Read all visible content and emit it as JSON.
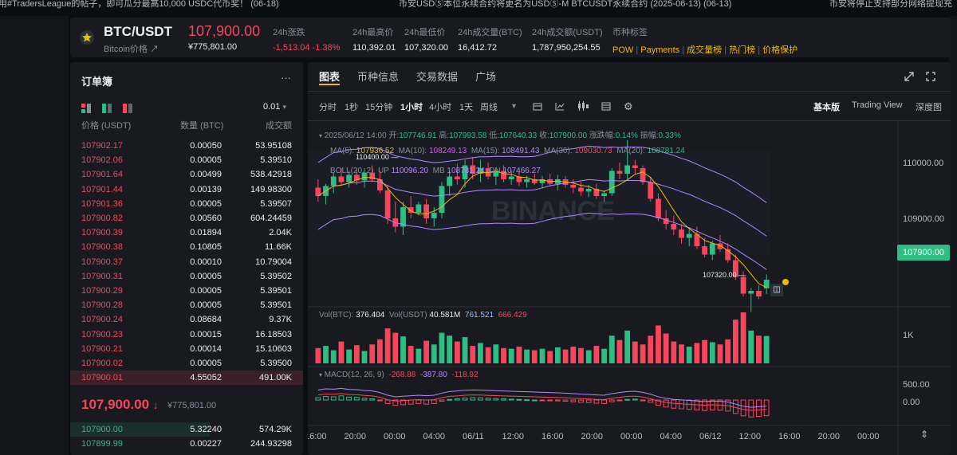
{
  "ticker": [
    "用#TradersLeague的帖子，即可瓜分最高10,000 USDC代币奖！ (06-18)",
    "币安USDⓈ本位永续合约将更名为USDⓈ-M BTCUSDT永续合约 (2025-06-13) (06-13)",
    "币安将停止支持部分网络提现充"
  ],
  "header": {
    "symbol": "BTC/USDT",
    "subtitle": "Bitcoin价格 ↗",
    "price": "107,900.00",
    "cny": "¥775,801.00",
    "stats": [
      {
        "label": "24h涨跌",
        "value": "-1,513.04 -1.38%",
        "color": "#f6465d"
      },
      {
        "label": "24h最高价",
        "value": "110,392.01"
      },
      {
        "label": "24h最低价",
        "value": "107,320.00"
      },
      {
        "label": "24h成交量(BTC)",
        "value": "16,412.72"
      },
      {
        "label": "24h成交额(USDT)",
        "value": "1,787,950,254.55"
      }
    ],
    "tags_label": "币种标签",
    "tags": [
      "POW",
      "Payments",
      "成交量榜",
      "热门榜",
      "价格保护"
    ]
  },
  "orderbook": {
    "title": "订单簿",
    "more": "···",
    "precision": "0.01",
    "col_price": "价格 (USDT)",
    "col_qty": "数量 (BTC)",
    "col_total": "成交额",
    "asks": [
      [
        "107902.17",
        "0.00050",
        "53.95108"
      ],
      [
        "107902.06",
        "0.00005",
        "5.39510"
      ],
      [
        "107901.64",
        "0.00499",
        "538.42918"
      ],
      [
        "107901.44",
        "0.00139",
        "149.98300"
      ],
      [
        "107901.36",
        "0.00005",
        "5.39507"
      ],
      [
        "107900.82",
        "0.00560",
        "604.24459"
      ],
      [
        "107900.39",
        "0.01894",
        "2.04K"
      ],
      [
        "107900.38",
        "0.10805",
        "11.66K"
      ],
      [
        "107900.37",
        "0.00010",
        "10.79004"
      ],
      [
        "107900.31",
        "0.00005",
        "5.39502"
      ],
      [
        "107900.29",
        "0.00005",
        "5.39501"
      ],
      [
        "107900.28",
        "0.00005",
        "5.39501"
      ],
      [
        "107900.24",
        "0.08684",
        "9.37K"
      ],
      [
        "107900.23",
        "0.00015",
        "16.18503"
      ],
      [
        "107900.21",
        "0.00014",
        "15.10603"
      ],
      [
        "107900.02",
        "0.00005",
        "5.39500"
      ],
      [
        "107900.01",
        "4.55052",
        "491.00K"
      ]
    ],
    "mid_price": "107,900.00",
    "mid_arrow": "↓",
    "mid_cny": "¥775,801.00",
    "bids": [
      [
        "107900.00",
        "5.32240",
        "574.29K"
      ],
      [
        "107899.99",
        "0.00227",
        "244.93298"
      ]
    ]
  },
  "chart_tabs": [
    "图表",
    "币种信息",
    "交易数据",
    "广场"
  ],
  "chart_toolbar": {
    "intervals": [
      "分时",
      "1秒",
      "15分钟",
      "1小时",
      "4小时",
      "1天",
      "周线"
    ],
    "active_interval": "1小时",
    "views": [
      "基本版",
      "Trading View",
      "深度图"
    ]
  },
  "chart_info": {
    "date": "2025/06/12 14:00",
    "open_label": "开:",
    "open": "107746.91",
    "high_label": "高:",
    "high": "107993.58",
    "low_label": "低:",
    "low": "107640.33",
    "close_label": "收:",
    "close": "107900.00",
    "change_label": "涨跌幅:",
    "change": "0.14%",
    "amp_label": "振幅:",
    "amp": "0.33%",
    "ma": [
      {
        "label": "MA(5):",
        "value": "107936.52",
        "color": "#f0b90b"
      },
      {
        "label": "MA(10):",
        "value": "108249.13",
        "color": "#e056fd"
      },
      {
        "label": "MA(15):",
        "value": "108491.43",
        "color": "#b388ff"
      },
      {
        "label": "MA(30):",
        "value": "109030.73",
        "color": "#f6465d"
      },
      {
        "label": "MA(20):",
        "value": "108781.24",
        "color": "#2ebd85"
      }
    ],
    "boll": {
      "label": "BOLL(20, 2)",
      "up_label": "UP",
      "up": "110096.20",
      "mb_label": "MB",
      "mb": "108781.24",
      "dn_label": "DN",
      "dn": "107466.27"
    },
    "high_mark": "110400.00",
    "low_mark": "107320.00",
    "price_tag": "107900.00",
    "vol": {
      "label": "Vol(BTC):",
      "btc": "376.404",
      "usdt_label": "Vol(USDT)",
      "usdt": "40.581M",
      "v1": "761.521",
      "v2": "666.429"
    },
    "macd": {
      "label": "MACD(12, 26, 9)",
      "v1": "-268.88",
      "v2": "-387.80",
      "v3": "-118.92"
    }
  },
  "chart_data": {
    "type": "candlestick",
    "ylim": [
      107000,
      110600
    ],
    "y_ticks": [
      "110000.00",
      "109000.00"
    ],
    "vol_ticks": [
      "1K"
    ],
    "macd_ticks": [
      "500.00",
      "0.00"
    ],
    "x_ticks": [
      "16:00",
      "20:00",
      "00:00",
      "04:00",
      "06/11",
      "12:00",
      "16:00",
      "20:00",
      "00:00",
      "04:00",
      "06/12",
      "12:00",
      "16:00",
      "20:00",
      "00:00"
    ],
    "candles": [
      [
        109550,
        109700,
        109300,
        109400
      ],
      [
        109400,
        109620,
        109250,
        109580
      ],
      [
        109580,
        109820,
        109450,
        109750
      ],
      [
        109750,
        109900,
        109600,
        109650
      ],
      [
        109650,
        109850,
        109550,
        109780
      ],
      [
        109780,
        109900,
        109600,
        109680
      ],
      [
        109680,
        109900,
        109550,
        109820
      ],
      [
        109820,
        109950,
        109650,
        109700
      ],
      [
        109700,
        109850,
        109450,
        109500
      ],
      [
        109500,
        109600,
        108900,
        109000
      ],
      [
        109000,
        109300,
        108750,
        108850
      ],
      [
        108850,
        109300,
        108700,
        109200
      ],
      [
        109200,
        109400,
        109000,
        109100
      ],
      [
        109100,
        109300,
        109050,
        109250
      ],
      [
        109250,
        109350,
        108900,
        109000
      ],
      [
        109000,
        109200,
        108850,
        109100
      ],
      [
        109100,
        109650,
        109000,
        109580
      ],
      [
        109580,
        109850,
        109400,
        109750
      ],
      [
        109750,
        109980,
        109600,
        109700
      ],
      [
        109700,
        110050,
        109550,
        109950
      ],
      [
        109950,
        110100,
        109700,
        109800
      ],
      [
        109800,
        110050,
        109650,
        109900
      ],
      [
        109900,
        110000,
        109700,
        109750
      ],
      [
        109750,
        109900,
        109600,
        109850
      ],
      [
        109850,
        109950,
        109650,
        109700
      ],
      [
        109700,
        109850,
        109600,
        109750
      ],
      [
        109750,
        109820,
        109580,
        109650
      ],
      [
        109650,
        109760,
        109550,
        109700
      ],
      [
        109700,
        109800,
        109600,
        109630
      ],
      [
        109630,
        109760,
        109550,
        109700
      ],
      [
        109700,
        109800,
        109580,
        109620
      ],
      [
        109620,
        109780,
        109500,
        109700
      ],
      [
        109700,
        109760,
        109550,
        109600
      ],
      [
        109600,
        109700,
        109450,
        109550
      ],
      [
        109550,
        109650,
        109400,
        109480
      ],
      [
        109480,
        109600,
        109380,
        109530
      ],
      [
        109530,
        109620,
        109350,
        109400
      ],
      [
        109400,
        109500,
        109300,
        109450
      ],
      [
        109450,
        109900,
        109400,
        109850
      ],
      [
        109850,
        110000,
        109700,
        109800
      ],
      [
        109800,
        110400,
        109700,
        109950
      ],
      [
        109950,
        110050,
        109800,
        109900
      ],
      [
        109900,
        109950,
        109600,
        109650
      ],
      [
        109650,
        109750,
        109300,
        109350
      ],
      [
        109350,
        109450,
        108950,
        109000
      ],
      [
        109000,
        109150,
        108800,
        108900
      ],
      [
        108900,
        109050,
        108700,
        108800
      ],
      [
        108800,
        108900,
        108550,
        108650
      ],
      [
        108650,
        108800,
        108500,
        108720
      ],
      [
        108720,
        108850,
        108450,
        108500
      ],
      [
        108500,
        108650,
        108300,
        108350
      ],
      [
        108350,
        108600,
        108250,
        108550
      ],
      [
        108550,
        108700,
        108400,
        108450
      ],
      [
        108450,
        108550,
        108200,
        108250
      ],
      [
        108250,
        108350,
        107900,
        107950
      ],
      [
        107950,
        108050,
        107600,
        107650
      ],
      [
        107650,
        107750,
        107320,
        107700
      ],
      [
        107700,
        107800,
        107550,
        107600
      ],
      [
        107746.91,
        107993.58,
        107640.33,
        107900
      ]
    ],
    "volume": [
      210,
      240,
      180,
      300,
      190,
      250,
      170,
      260,
      330,
      480,
      420,
      370,
      240,
      200,
      310,
      260,
      420,
      380,
      300,
      360,
      240,
      280,
      220,
      260,
      210,
      200,
      230,
      190,
      180,
      200,
      170,
      220,
      190,
      230,
      210,
      180,
      240,
      200,
      380,
      320,
      450,
      300,
      260,
      380,
      520,
      410,
      300,
      260,
      230,
      280,
      320,
      290,
      260,
      330,
      600,
      700,
      450,
      380,
      376
    ],
    "macd": [
      40,
      60,
      55,
      70,
      50,
      45,
      30,
      20,
      -10,
      -60,
      -90,
      -80,
      -70,
      -60,
      -70,
      -60,
      -20,
      10,
      20,
      35,
      40,
      38,
      30,
      25,
      20,
      15,
      10,
      5,
      0,
      -5,
      -10,
      -15,
      -20,
      -30,
      -40,
      -45,
      -55,
      -60,
      -30,
      -10,
      10,
      15,
      -5,
      -40,
      -90,
      -120,
      -140,
      -150,
      -160,
      -170,
      -180,
      -170,
      -175,
      -190,
      -230,
      -270,
      -290,
      -280,
      -268
    ]
  }
}
